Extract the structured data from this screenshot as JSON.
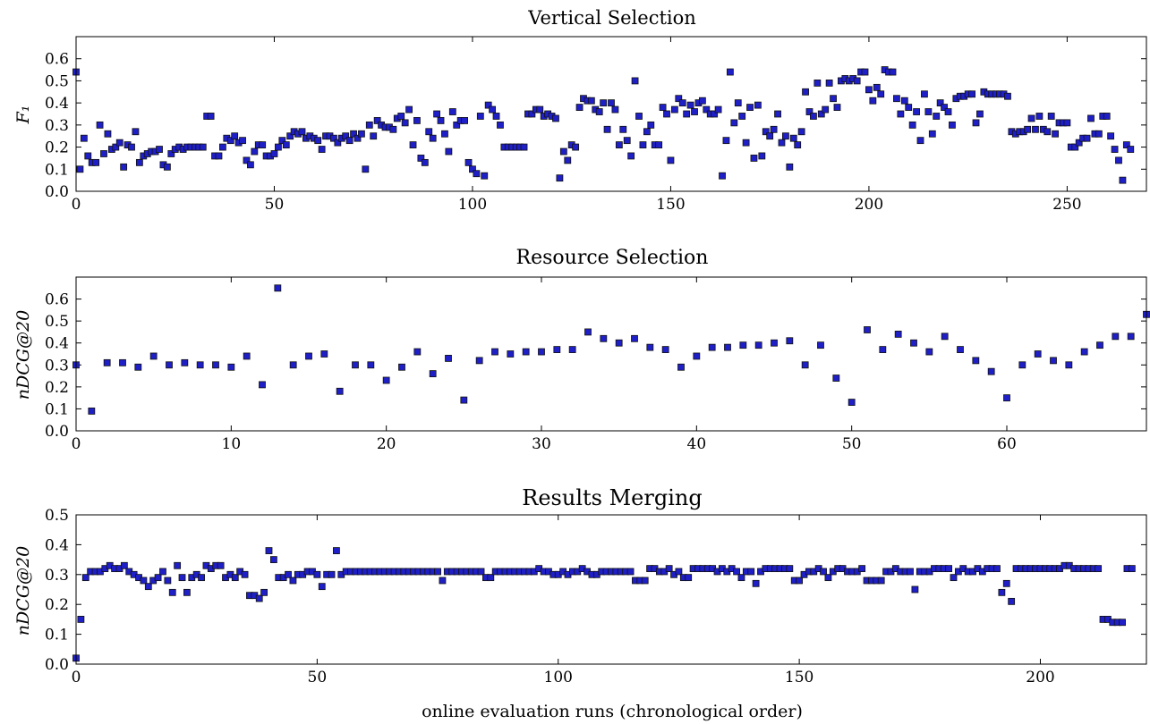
{
  "colors": {
    "marker_fill": "#1f1fc8",
    "marker_edge": "#111111",
    "axes": "#000000"
  },
  "chart_data": [
    {
      "type": "scatter",
      "title": "Vertical Selection",
      "xlabel": "",
      "ylabel": "F₁",
      "xlim": [
        0,
        270
      ],
      "ylim": [
        0.0,
        0.7
      ],
      "xticks": [
        "0",
        "50",
        "100",
        "150",
        "200",
        "250"
      ],
      "yticks": [
        "0.0",
        "0.1",
        "0.2",
        "0.3",
        "0.4",
        "0.5",
        "0.6"
      ],
      "grid": false,
      "y": [
        0.54,
        0.1,
        0.24,
        0.16,
        0.13,
        0.13,
        0.3,
        0.17,
        0.26,
        0.19,
        0.2,
        0.22,
        0.11,
        0.21,
        0.2,
        0.27,
        0.13,
        0.16,
        0.17,
        0.18,
        0.18,
        0.19,
        0.12,
        0.11,
        0.17,
        0.19,
        0.2,
        0.19,
        0.2,
        0.2,
        0.2,
        0.2,
        0.2,
        0.34,
        0.34,
        0.16,
        0.16,
        0.2,
        0.24,
        0.23,
        0.25,
        0.22,
        0.23,
        0.14,
        0.12,
        0.18,
        0.21,
        0.21,
        0.16,
        0.16,
        0.17,
        0.2,
        0.23,
        0.21,
        0.25,
        0.27,
        0.26,
        0.27,
        0.24,
        0.25,
        0.24,
        0.23,
        0.19,
        0.25,
        0.25,
        0.24,
        0.22,
        0.24,
        0.25,
        0.23,
        0.26,
        0.24,
        0.26,
        0.1,
        0.3,
        0.25,
        0.32,
        0.3,
        0.29,
        0.29,
        0.28,
        0.33,
        0.34,
        0.31,
        0.37,
        0.21,
        0.32,
        0.15,
        0.13,
        0.27,
        0.24,
        0.35,
        0.32,
        0.26,
        0.18,
        0.36,
        0.3,
        0.32,
        0.32,
        0.13,
        0.1,
        0.08,
        0.34,
        0.07,
        0.39,
        0.37,
        0.34,
        0.3,
        0.2,
        0.2,
        0.2,
        0.2,
        0.2,
        0.2,
        0.35,
        0.35,
        0.37,
        0.37,
        0.34,
        0.35,
        0.34,
        0.33,
        0.06,
        0.18,
        0.14,
        0.21,
        0.2,
        0.38,
        0.42,
        0.41,
        0.41,
        0.37,
        0.36,
        0.4,
        0.28,
        0.4,
        0.37,
        0.21,
        0.28,
        0.23,
        0.16,
        0.5,
        0.34,
        0.21,
        0.27,
        0.3,
        0.21,
        0.21,
        0.38,
        0.35,
        0.14,
        0.37,
        0.42,
        0.4,
        0.35,
        0.39,
        0.36,
        0.4,
        0.41,
        0.37,
        0.35,
        0.35,
        0.37,
        0.07,
        0.23,
        0.54,
        0.31,
        0.4,
        0.34,
        0.22,
        0.38,
        0.15,
        0.39,
        0.16,
        0.27,
        0.25,
        0.28,
        0.35,
        0.22,
        0.25,
        0.11,
        0.24,
        0.21,
        0.27,
        0.45,
        0.36,
        0.34,
        0.49,
        0.35,
        0.37,
        0.49,
        0.42,
        0.38,
        0.5,
        0.51,
        0.5,
        0.51,
        0.5,
        0.54,
        0.54,
        0.46,
        0.41,
        0.47,
        0.44,
        0.55,
        0.54,
        0.54,
        0.42,
        0.35,
        0.41,
        0.38,
        0.3,
        0.36,
        0.23,
        0.44,
        0.36,
        0.26,
        0.34,
        0.4,
        0.38,
        0.36,
        0.3,
        0.42,
        0.43,
        0.43,
        0.44,
        0.44,
        0.31,
        0.35,
        0.45,
        0.44,
        0.44,
        0.44,
        0.44,
        0.44,
        0.43,
        0.27,
        0.26,
        0.27,
        0.27,
        0.28,
        0.33,
        0.28,
        0.34,
        0.28,
        0.27,
        0.34,
        0.26,
        0.31,
        0.31,
        0.31,
        0.2,
        0.2,
        0.22,
        0.24,
        0.24,
        0.33,
        0.26,
        0.26,
        0.34,
        0.34,
        0.25,
        0.19,
        0.14,
        0.05,
        0.21,
        0.19
      ]
    },
    {
      "type": "scatter",
      "title": "Resource Selection",
      "xlabel": "",
      "ylabel": "nDCG@20",
      "xlim": [
        0,
        69
      ],
      "ylim": [
        0.0,
        0.7
      ],
      "xticks": [
        "0",
        "10",
        "20",
        "30",
        "40",
        "50",
        "60"
      ],
      "yticks": [
        "0.0",
        "0.1",
        "0.2",
        "0.3",
        "0.4",
        "0.5",
        "0.6"
      ],
      "grid": false,
      "y": [
        0.3,
        0.09,
        0.31,
        0.31,
        0.29,
        0.34,
        0.3,
        0.31,
        0.3,
        0.3,
        0.29,
        0.34,
        0.21,
        0.65,
        0.3,
        0.34,
        0.35,
        0.18,
        0.3,
        0.3,
        0.23,
        0.29,
        0.36,
        0.26,
        0.33,
        0.14,
        0.32,
        0.36,
        0.35,
        0.36,
        0.36,
        0.37,
        0.37,
        0.45,
        0.42,
        0.4,
        0.42,
        0.38,
        0.37,
        0.29,
        0.34,
        0.38,
        0.38,
        0.39,
        0.39,
        0.4,
        0.41,
        0.3,
        0.39,
        0.24,
        0.13,
        0.46,
        0.37,
        0.44,
        0.4,
        0.36,
        0.43,
        0.37,
        0.32,
        0.27,
        0.15,
        0.3,
        0.35,
        0.32,
        0.3,
        0.36,
        0.39,
        0.43,
        0.43,
        0.53
      ]
    },
    {
      "type": "scatter",
      "title": "Results Merging",
      "xlabel": "online evaluation runs (chronological order)",
      "ylabel": "nDCG@20",
      "xlim": [
        0,
        222
      ],
      "ylim": [
        0.0,
        0.5
      ],
      "xticks": [
        "0",
        "50",
        "100",
        "150",
        "200"
      ],
      "yticks": [
        "0.0",
        "0.1",
        "0.2",
        "0.3",
        "0.4",
        "0.5"
      ],
      "grid": false,
      "y": [
        0.02,
        0.15,
        0.29,
        0.31,
        0.31,
        0.31,
        0.32,
        0.33,
        0.32,
        0.32,
        0.33,
        0.31,
        0.3,
        0.29,
        0.28,
        0.26,
        0.28,
        0.29,
        0.31,
        0.28,
        0.24,
        0.33,
        0.29,
        0.24,
        0.29,
        0.3,
        0.29,
        0.33,
        0.32,
        0.33,
        0.33,
        0.29,
        0.3,
        0.29,
        0.31,
        0.3,
        0.23,
        0.23,
        0.22,
        0.24,
        0.38,
        0.35,
        0.29,
        0.29,
        0.3,
        0.28,
        0.3,
        0.3,
        0.31,
        0.31,
        0.3,
        0.26,
        0.3,
        0.3,
        0.38,
        0.3,
        0.31,
        0.31,
        0.31,
        0.31,
        0.31,
        0.31,
        0.31,
        0.31,
        0.31,
        0.31,
        0.31,
        0.31,
        0.31,
        0.31,
        0.31,
        0.31,
        0.31,
        0.31,
        0.31,
        0.31,
        0.28,
        0.31,
        0.31,
        0.31,
        0.31,
        0.31,
        0.31,
        0.31,
        0.31,
        0.29,
        0.29,
        0.31,
        0.31,
        0.31,
        0.31,
        0.31,
        0.31,
        0.31,
        0.31,
        0.31,
        0.32,
        0.31,
        0.31,
        0.3,
        0.3,
        0.31,
        0.3,
        0.31,
        0.31,
        0.32,
        0.31,
        0.3,
        0.3,
        0.31,
        0.31,
        0.31,
        0.31,
        0.31,
        0.31,
        0.31,
        0.28,
        0.28,
        0.28,
        0.32,
        0.32,
        0.31,
        0.31,
        0.32,
        0.3,
        0.31,
        0.29,
        0.29,
        0.32,
        0.32,
        0.32,
        0.32,
        0.32,
        0.31,
        0.32,
        0.31,
        0.32,
        0.31,
        0.29,
        0.31,
        0.31,
        0.27,
        0.31,
        0.32,
        0.32,
        0.32,
        0.32,
        0.32,
        0.32,
        0.28,
        0.28,
        0.3,
        0.31,
        0.31,
        0.32,
        0.31,
        0.29,
        0.31,
        0.32,
        0.32,
        0.31,
        0.31,
        0.31,
        0.32,
        0.28,
        0.28,
        0.28,
        0.28,
        0.31,
        0.31,
        0.32,
        0.31,
        0.31,
        0.31,
        0.25,
        0.31,
        0.31,
        0.31,
        0.32,
        0.32,
        0.32,
        0.32,
        0.29,
        0.31,
        0.32,
        0.31,
        0.31,
        0.32,
        0.31,
        0.32,
        0.32,
        0.32,
        0.24,
        0.27,
        0.21,
        0.32,
        0.32,
        0.32,
        0.32,
        0.32,
        0.32,
        0.32,
        0.32,
        0.32,
        0.32,
        0.33,
        0.33,
        0.32,
        0.32,
        0.32,
        0.32,
        0.32,
        0.32,
        0.15,
        0.15,
        0.14,
        0.14,
        0.14,
        0.32,
        0.32
      ]
    }
  ]
}
